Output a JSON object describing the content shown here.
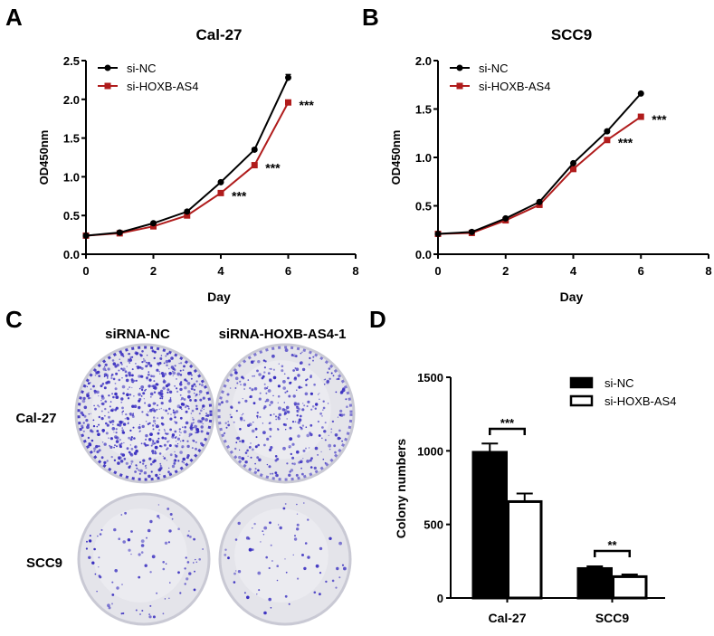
{
  "panel_labels": [
    "A",
    "B",
    "C",
    "D"
  ],
  "colors": {
    "si_NC": "#000000",
    "si_HOXB_AS4": "#b01c1c",
    "stain": "#3a2fc0"
  },
  "chart_data": [
    {
      "type": "line",
      "title": "Cal-27",
      "xlabel": "Day",
      "ylabel": "OD450nm",
      "xlim": [
        0,
        8
      ],
      "ylim": [
        0,
        2.5
      ],
      "xticks": [
        "0",
        "2",
        "4",
        "6",
        "8"
      ],
      "yticks": [
        "0.0",
        "0.5",
        "1.0",
        "1.5",
        "2.0",
        "2.5"
      ],
      "legend": "top-left",
      "x": [
        0,
        1,
        2,
        3,
        4,
        5,
        6
      ],
      "series": [
        {
          "name": "si-NC",
          "marker": "circle",
          "values": [
            0.24,
            0.28,
            0.4,
            0.55,
            0.93,
            1.35,
            2.28
          ],
          "error": [
            0.01,
            0.01,
            0.01,
            0.02,
            0.01,
            0.02,
            0.04
          ]
        },
        {
          "name": "si-HOXB-AS4",
          "marker": "square",
          "values": [
            0.24,
            0.27,
            0.36,
            0.5,
            0.79,
            1.15,
            1.96
          ],
          "error": [
            0.01,
            0.01,
            0.01,
            0.01,
            0.02,
            0.02,
            0.02
          ]
        }
      ],
      "annotations": [
        {
          "x": 4,
          "text": "***"
        },
        {
          "x": 5,
          "text": "***"
        },
        {
          "x": 6,
          "text": "***"
        }
      ]
    },
    {
      "type": "line",
      "title": "SCC9",
      "xlabel": "Day",
      "ylabel": "OD450nm",
      "xlim": [
        0,
        8
      ],
      "ylim": [
        0,
        2.0
      ],
      "xticks": [
        "0",
        "2",
        "4",
        "6",
        "8"
      ],
      "yticks": [
        "0.0",
        "0.5",
        "1.0",
        "1.5",
        "2.0"
      ],
      "legend": "top-left",
      "x": [
        0,
        1,
        2,
        3,
        4,
        5,
        6
      ],
      "series": [
        {
          "name": "si-NC",
          "marker": "circle",
          "values": [
            0.21,
            0.23,
            0.37,
            0.54,
            0.94,
            1.27,
            1.66
          ],
          "error": [
            0.01,
            0.01,
            0.01,
            0.01,
            0.01,
            0.01,
            0.01
          ]
        },
        {
          "name": "si-HOXB-AS4",
          "marker": "square",
          "values": [
            0.21,
            0.22,
            0.35,
            0.51,
            0.88,
            1.18,
            1.42
          ],
          "error": [
            0.01,
            0.01,
            0.01,
            0.01,
            0.01,
            0.01,
            0.01
          ]
        }
      ],
      "annotations": [
        {
          "x": 5,
          "text": "***"
        },
        {
          "x": 6,
          "text": "***"
        }
      ]
    },
    {
      "type": "bar",
      "title": "",
      "xlabel": "",
      "ylabel": "Colony numbers",
      "ylim": [
        0,
        1500
      ],
      "yticks": [
        "0",
        "500",
        "1000",
        "1500"
      ],
      "legend": "top-right",
      "categories": [
        "Cal-27",
        "SCC9"
      ],
      "series": [
        {
          "name": "si-NC",
          "fill": "black",
          "values": [
            990,
            200
          ],
          "error": [
            60,
            15
          ]
        },
        {
          "name": "si-HOXB-AS4",
          "fill": "white",
          "values": [
            655,
            145
          ],
          "error": [
            55,
            15
          ]
        }
      ],
      "annotations": [
        {
          "category": "Cal-27",
          "text": "***"
        },
        {
          "category": "SCC9",
          "text": "**"
        }
      ]
    }
  ],
  "colony_panel": {
    "columns": [
      "siRNA-NC",
      "siRNA-HOXB-AS4-1"
    ],
    "rows": [
      "Cal-27",
      "SCC9"
    ]
  }
}
